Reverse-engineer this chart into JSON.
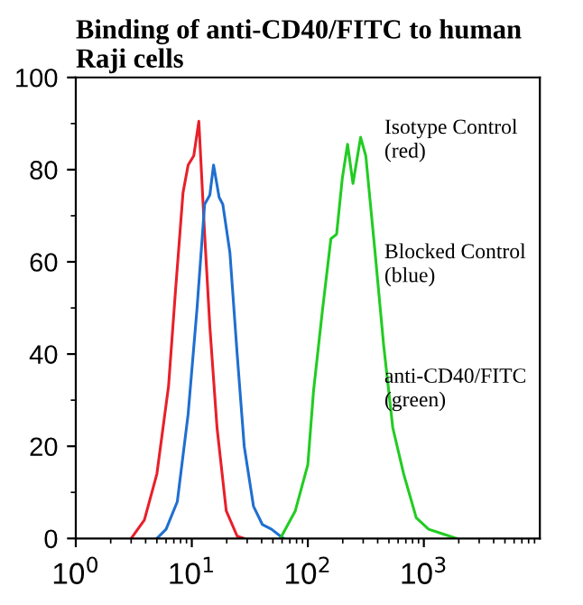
{
  "chart_data": {
    "type": "line",
    "title": "Binding of anti-CD40/FITC to human\nRaji cells",
    "log": "x",
    "xlim": [
      1,
      10000
    ],
    "ylim": [
      0,
      100
    ],
    "xticks": [
      {
        "value": 1,
        "label": "10$^{0}$"
      },
      {
        "value": 10,
        "label": "10$^{1}$"
      },
      {
        "value": 100,
        "label": "10$^{2}$"
      },
      {
        "value": 1000,
        "label": "10$^{3}$"
      }
    ],
    "yticks": [
      0,
      20,
      40,
      60,
      80,
      100
    ],
    "grid": false,
    "marker": "none",
    "line_style": "solid",
    "series": [
      {
        "color": "#e8202a",
        "x": [
          3.0,
          3.9,
          5.0,
          6.3,
          7.2,
          8.4,
          9.3,
          10.4,
          11.5,
          12.9,
          14.3,
          16.5,
          19.8,
          24.6,
          28
        ],
        "values": [
          0,
          4,
          14,
          33,
          53,
          75,
          81,
          83,
          90.5,
          66,
          46,
          24,
          6,
          0.5,
          0
        ]
      },
      {
        "color": "#1f6fd0",
        "x": [
          5.0,
          6.0,
          7.5,
          9.3,
          11.1,
          12.9,
          14.3,
          15.4,
          17.2,
          18.5,
          21.3,
          24.6,
          28.3,
          34,
          40.6,
          48.7,
          58,
          62
        ],
        "values": [
          0,
          2,
          8,
          27,
          50,
          72.5,
          74.5,
          81,
          74,
          72.5,
          62,
          40,
          20,
          7,
          3,
          2,
          0.5,
          0
        ]
      },
      {
        "color": "#22cc22",
        "x": [
          58,
          78,
          100,
          112,
          133,
          158,
          177,
          198,
          220,
          245,
          285,
          316,
          380,
          450,
          540,
          670,
          860,
          1100,
          1380,
          1900
        ],
        "values": [
          0,
          6,
          16,
          32,
          49,
          65,
          66,
          78,
          85.5,
          77,
          87,
          83,
          62,
          42,
          24,
          14,
          4.5,
          2,
          1.2,
          0
        ]
      }
    ],
    "annotations": [
      "Isotype Control\n(red)",
      "Blocked Control\n(blue)",
      "anti-CD40/FITC\n(green)"
    ]
  }
}
